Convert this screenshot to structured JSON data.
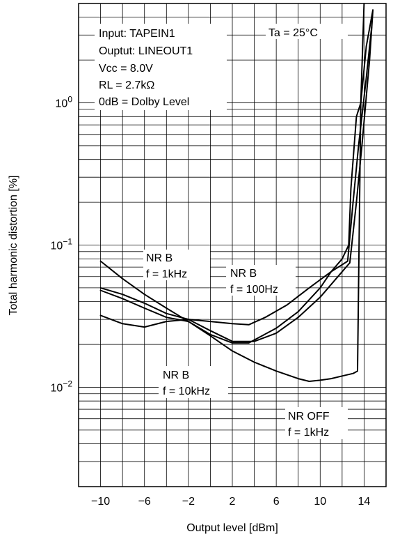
{
  "chart_data": {
    "type": "line",
    "xlabel": "Output level [dBm]",
    "ylabel": "Total harmonic distortion [%]",
    "xlim": [
      -12,
      16
    ],
    "ylim": [
      0.002,
      5
    ],
    "y_scale": "log",
    "grid": true,
    "x_ticks": [
      -10,
      -6,
      -2,
      2,
      6,
      10,
      14
    ],
    "x_tick_labels": [
      "−10",
      "−6",
      "−2",
      "2",
      "6",
      "10",
      "14"
    ],
    "y_ticks": [
      1,
      0.1,
      0.01
    ],
    "y_tick_labels": [
      {
        "base": "10",
        "exp": "0"
      },
      {
        "base": "10",
        "exp": "−1"
      },
      {
        "base": "10",
        "exp": "−2"
      }
    ],
    "conditions": [
      "Input:   TAPEIN1",
      "Ouptut: LINEOUT1",
      "Vcc = 8.0V",
      "RL = 2.7kΩ",
      "0dB = Dolby Level"
    ],
    "temperature_note": "Ta = 25°C",
    "series": [
      {
        "label_lines": [
          "NR B",
          "f = 1kHz"
        ],
        "x": [
          -10,
          -8,
          -6,
          -4,
          -2,
          0,
          2,
          3.5,
          6,
          8,
          10,
          11,
          12,
          12.6,
          12.8,
          13.3,
          13.7,
          14.2,
          14.8
        ],
        "y": [
          0.077,
          0.058,
          0.045,
          0.036,
          0.029,
          0.0235,
          0.0205,
          0.0205,
          0.026,
          0.034,
          0.05,
          0.065,
          0.08,
          0.1,
          0.25,
          0.8,
          1.0,
          2.5,
          4.5
        ]
      },
      {
        "label_lines": [
          "NR B",
          "f = 100Hz"
        ],
        "x": [
          -10,
          -8,
          -6,
          -4,
          -2,
          0,
          2,
          3.5,
          5,
          7,
          9,
          11,
          12.5,
          13,
          13.5,
          14.2,
          14.7
        ],
        "y": [
          0.05,
          0.045,
          0.039,
          0.033,
          0.03,
          0.029,
          0.028,
          0.0275,
          0.031,
          0.038,
          0.05,
          0.065,
          0.077,
          0.2,
          0.5,
          1.5,
          3.5
        ]
      },
      {
        "label_lines": [
          "NR B",
          "f = 10kHz"
        ],
        "x": [
          -10,
          -8,
          -6,
          -4,
          -2,
          0,
          2,
          4,
          6,
          8,
          10,
          12,
          12.7,
          13.3,
          13.8,
          14.5,
          14.8
        ],
        "y": [
          0.032,
          0.028,
          0.0265,
          0.029,
          0.03,
          0.025,
          0.021,
          0.021,
          0.024,
          0.031,
          0.043,
          0.065,
          0.075,
          0.2,
          0.5,
          2.0,
          4.5
        ]
      },
      {
        "label_lines": [
          "NR OFF",
          "f = 1kHz"
        ],
        "x": [
          -10,
          -8,
          -6,
          -4,
          -2,
          0,
          2,
          4,
          6,
          8,
          9,
          10,
          11,
          12,
          13,
          13.4,
          13.7,
          14
        ],
        "y": [
          0.048,
          0.042,
          0.036,
          0.031,
          0.029,
          0.023,
          0.018,
          0.015,
          0.013,
          0.0115,
          0.011,
          0.0112,
          0.0115,
          0.012,
          0.0125,
          0.013,
          1.0,
          5.0
        ]
      }
    ]
  }
}
